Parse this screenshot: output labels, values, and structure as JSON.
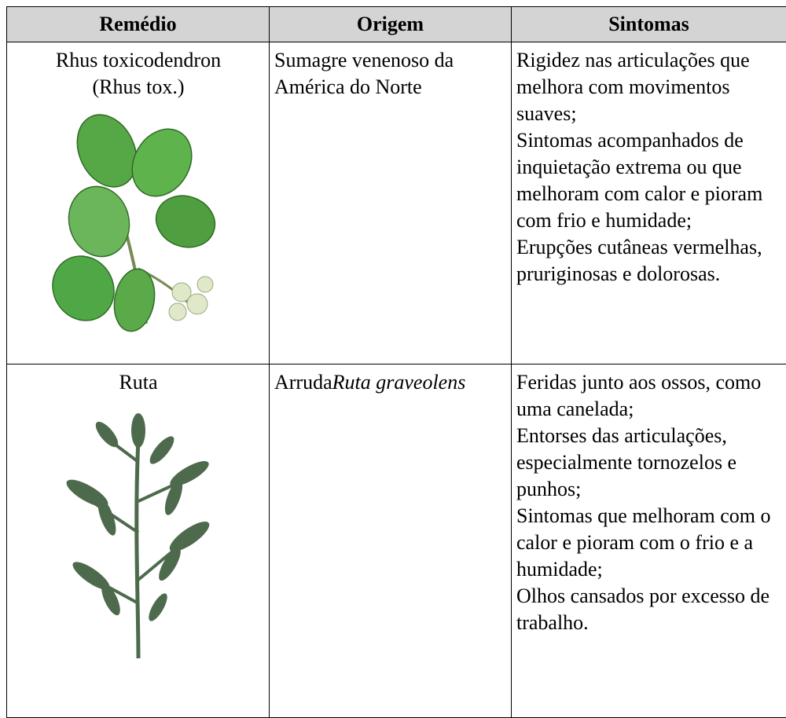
{
  "table": {
    "header": [
      "Remédio",
      "Origem",
      "Sintomas"
    ],
    "rows": [
      {
        "remedy": [
          "Rhus toxicodendron",
          "(Rhus tox.)"
        ],
        "origin": {
          "text": "Sumagre venenoso da América do Norte"
        },
        "symptoms": [
          "Rigidez nas articulações que melhora com movimentos suaves;",
          "Sintomas acompanhados de inquietação extrema ou que melhoram com calor e pioram com frio e humidade;",
          "Erupções cutâneas vermelhas, pruriginosas e dolorosas."
        ]
      },
      {
        "remedy": [
          "Ruta"
        ],
        "origin": {
          "text": "Arruda",
          "italic": "Ruta graveolens"
        },
        "symptoms": [
          "Feridas junto aos ossos, como uma canelada;",
          "Entorses das articulações, especialmente tornozelos e punhos;",
          "Sintomas que melhoram com o calor e pioram com o frio e a humidade;",
          "Olhos cansados por excesso de trabalho."
        ]
      }
    ]
  }
}
